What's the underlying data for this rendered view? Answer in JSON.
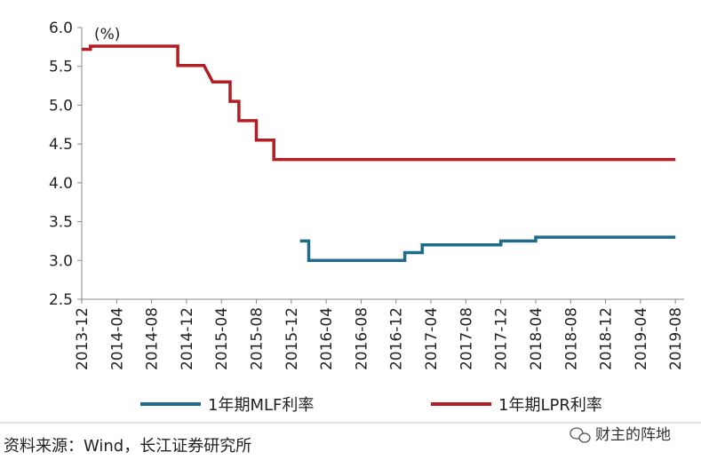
{
  "chart_data": {
    "type": "line",
    "unit_label": "(%)",
    "ylim": [
      2.5,
      6.0
    ],
    "y_ticks": [
      "6.0",
      "5.5",
      "5.0",
      "4.5",
      "4.0",
      "3.5",
      "3.0",
      "2.5"
    ],
    "x_range": [
      "2013-12",
      "2019-09"
    ],
    "x_ticks": [
      "2013-12",
      "2014-04",
      "2014-08",
      "2014-12",
      "2015-04",
      "2015-08",
      "2015-12",
      "2016-04",
      "2016-08",
      "2016-12",
      "2017-04",
      "2017-08",
      "2017-12",
      "2018-04",
      "2018-08",
      "2018-12",
      "2019-04",
      "2019-08"
    ],
    "grid": false,
    "legend_position": "bottom",
    "series": [
      {
        "name": "1年期MLF利率",
        "color": "#1f6b8c",
        "step_points": [
          [
            "2016-01",
            3.25
          ],
          [
            "2016-02",
            3.25
          ],
          [
            "2016-02",
            3.0
          ],
          [
            "2017-01",
            3.0
          ],
          [
            "2017-01",
            3.1
          ],
          [
            "2017-03",
            3.1
          ],
          [
            "2017-03",
            3.2
          ],
          [
            "2017-12",
            3.2
          ],
          [
            "2017-12",
            3.25
          ],
          [
            "2018-04",
            3.25
          ],
          [
            "2018-04",
            3.3
          ],
          [
            "2019-08",
            3.3
          ]
        ]
      },
      {
        "name": "1年期LPR利率",
        "color": "#b21e23",
        "step_points": [
          [
            "2013-12",
            5.72
          ],
          [
            "2014-01",
            5.72
          ],
          [
            "2014-01",
            5.76
          ],
          [
            "2014-11",
            5.76
          ],
          [
            "2014-11",
            5.51
          ],
          [
            "2015-02",
            5.51
          ],
          [
            "2015-03",
            5.3
          ],
          [
            "2015-05",
            5.3
          ],
          [
            "2015-05",
            5.05
          ],
          [
            "2015-06",
            5.05
          ],
          [
            "2015-06",
            4.8
          ],
          [
            "2015-07",
            4.8
          ],
          [
            "2015-08",
            4.8
          ],
          [
            "2015-08",
            4.55
          ],
          [
            "2015-10",
            4.55
          ],
          [
            "2015-10",
            4.3
          ],
          [
            "2019-08",
            4.3
          ]
        ]
      }
    ]
  },
  "source": "资料来源：Wind，长江证券研究所",
  "watermark": "财主的阵地"
}
